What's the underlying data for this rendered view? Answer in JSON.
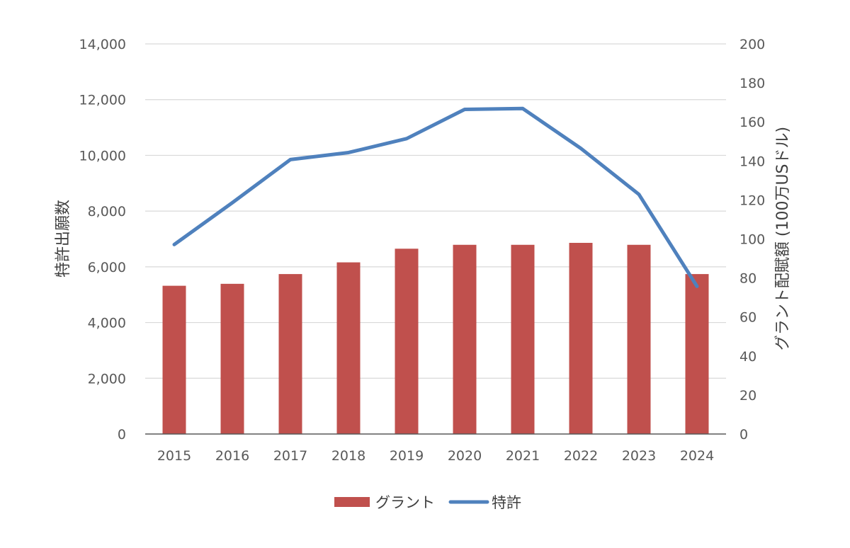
{
  "chart_data": {
    "type": "bar-line-combo",
    "categories": [
      "2015",
      "2016",
      "2017",
      "2018",
      "2019",
      "2020",
      "2021",
      "2022",
      "2023",
      "2024"
    ],
    "series": [
      {
        "name": "グラント",
        "type": "bar",
        "axis": "right",
        "color": "#C0504D",
        "values": [
          76,
          77,
          82,
          88,
          95,
          97,
          97,
          98,
          97,
          82
        ]
      },
      {
        "name": "特許",
        "type": "line",
        "axis": "left",
        "color": "#4F81BD",
        "values": [
          6800,
          8300,
          9850,
          10100,
          10600,
          11650,
          11680,
          10250,
          8600,
          5300
        ]
      }
    ],
    "y_left": {
      "label": "特許出願数",
      "range": [
        0,
        14000
      ],
      "ticks": [
        "0",
        "2,000",
        "4,000",
        "6,000",
        "8,000",
        "10,000",
        "12,000",
        "14,000"
      ]
    },
    "y_right": {
      "label": "グラント配賦額 (100万USドル)",
      "range": [
        0,
        200
      ],
      "ticks": [
        "0",
        "20",
        "40",
        "60",
        "80",
        "100",
        "120",
        "140",
        "160",
        "180",
        "200"
      ]
    },
    "grid": true,
    "legend_position": "bottom"
  }
}
